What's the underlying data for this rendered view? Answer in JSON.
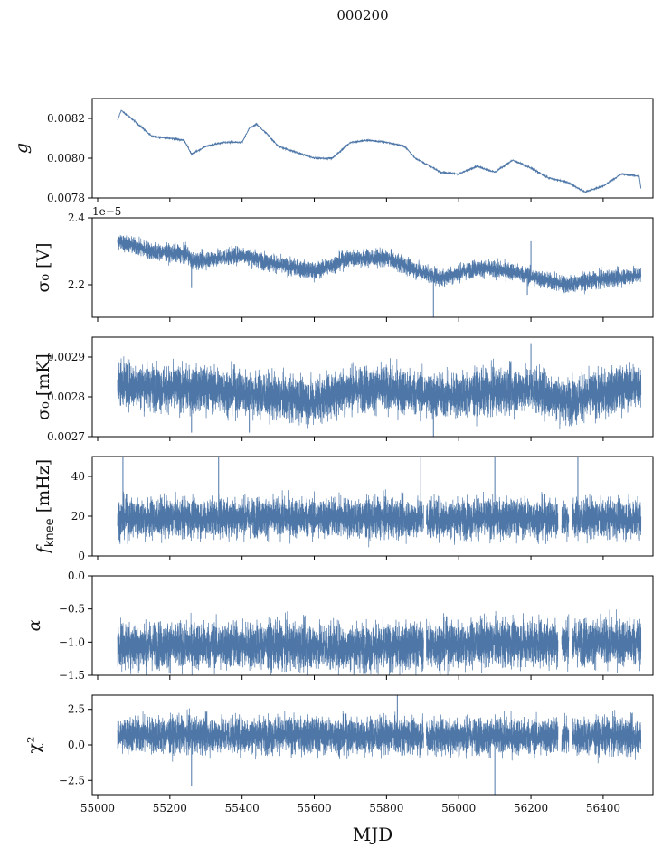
{
  "chart_data": {
    "type": "line",
    "title": "000200",
    "xlabel": "MJD",
    "xlim": [
      54985,
      56538
    ],
    "xticks": [
      55000,
      55200,
      55400,
      55600,
      55800,
      56000,
      56200,
      56400
    ],
    "xtick_labels": [
      "55000",
      "55200",
      "55400",
      "55600",
      "55800",
      "56000",
      "56200",
      "56400"
    ],
    "x_data_range": [
      55055,
      56505
    ],
    "color": "#4e77a8",
    "panels": [
      {
        "id": "g",
        "ylabel": "g",
        "ylabel_sub": "",
        "ylim": [
          0.0078,
          0.0083
        ],
        "yticks": [
          0.0078,
          0.008,
          0.0082
        ],
        "ytick_labels": [
          "0.0078",
          "0.0080",
          "0.0082"
        ],
        "noise": 6e-06,
        "style": "line",
        "trend": [
          [
            55055,
            0.00819
          ],
          [
            55065,
            0.00824
          ],
          [
            55100,
            0.00819
          ],
          [
            55150,
            0.00811
          ],
          [
            55200,
            0.0081
          ],
          [
            55240,
            0.00809
          ],
          [
            55260,
            0.00802
          ],
          [
            55300,
            0.00806
          ],
          [
            55350,
            0.00808
          ],
          [
            55400,
            0.00808
          ],
          [
            55420,
            0.00815
          ],
          [
            55440,
            0.00817
          ],
          [
            55470,
            0.00812
          ],
          [
            55500,
            0.00806
          ],
          [
            55550,
            0.00803
          ],
          [
            55600,
            0.008
          ],
          [
            55650,
            0.008
          ],
          [
            55700,
            0.00808
          ],
          [
            55750,
            0.00809
          ],
          [
            55800,
            0.00808
          ],
          [
            55850,
            0.00806
          ],
          [
            55880,
            0.008
          ],
          [
            55900,
            0.00798
          ],
          [
            55950,
            0.00793
          ],
          [
            56000,
            0.00792
          ],
          [
            56050,
            0.00796
          ],
          [
            56100,
            0.00793
          ],
          [
            56150,
            0.00799
          ],
          [
            56200,
            0.00795
          ],
          [
            56250,
            0.0079
          ],
          [
            56300,
            0.00788
          ],
          [
            56350,
            0.00783
          ],
          [
            56400,
            0.00786
          ],
          [
            56450,
            0.00792
          ],
          [
            56500,
            0.00791
          ],
          [
            56505,
            0.00784
          ]
        ],
        "spikes": [],
        "gaps": []
      },
      {
        "id": "sigma0-v",
        "ylabel": "σ₀ [V]",
        "offset_text": "1e−5",
        "ylim": [
          2.1027,
          2.4
        ],
        "yticks": [
          2.2,
          2.4
        ],
        "ytick_labels": [
          "2.2",
          "2.4"
        ],
        "noise": 0.018,
        "style": "band",
        "trend": [
          [
            55055,
            2.33
          ],
          [
            55150,
            2.3
          ],
          [
            55250,
            2.29
          ],
          [
            55260,
            2.27
          ],
          [
            55400,
            2.29
          ],
          [
            55430,
            2.28
          ],
          [
            55500,
            2.26
          ],
          [
            55600,
            2.24
          ],
          [
            55650,
            2.26
          ],
          [
            55700,
            2.28
          ],
          [
            55800,
            2.28
          ],
          [
            55870,
            2.25
          ],
          [
            55950,
            2.22
          ],
          [
            56050,
            2.25
          ],
          [
            56150,
            2.24
          ],
          [
            56250,
            2.21
          ],
          [
            56300,
            2.2
          ],
          [
            56350,
            2.21
          ],
          [
            56500,
            2.23
          ]
        ],
        "spikes": [
          [
            55260,
            2.19
          ],
          [
            55930,
            2.1
          ],
          [
            56200,
            2.33
          ],
          [
            56190,
            2.17
          ]
        ],
        "gaps": []
      },
      {
        "id": "sigma0-mk",
        "ylabel": "σ₀ [mK]",
        "ylim": [
          0.0027,
          0.00295
        ],
        "yticks": [
          0.0027,
          0.0028,
          0.0029
        ],
        "ytick_labels": [
          "0.0027",
          "0.0028",
          "0.0029"
        ],
        "noise": 4e-05,
        "style": "band",
        "trend": [
          [
            55055,
            0.002835
          ],
          [
            55200,
            0.00282
          ],
          [
            55300,
            0.00282
          ],
          [
            55420,
            0.00281
          ],
          [
            55500,
            0.0028
          ],
          [
            55600,
            0.00279
          ],
          [
            55700,
            0.00282
          ],
          [
            55800,
            0.00282
          ],
          [
            55880,
            0.00281
          ],
          [
            55950,
            0.0028
          ],
          [
            56050,
            0.00281
          ],
          [
            56200,
            0.00282
          ],
          [
            56300,
            0.00279
          ],
          [
            56400,
            0.00281
          ],
          [
            56505,
            0.00283
          ]
        ],
        "spikes": [
          [
            55260,
            0.00271
          ],
          [
            55420,
            0.00271
          ],
          [
            55930,
            0.0027
          ],
          [
            56200,
            0.002935
          ]
        ],
        "gaps": []
      },
      {
        "id": "fknee",
        "ylabel": "f_knee [mHz]",
        "ylim": [
          0,
          50
        ],
        "yticks": [
          0,
          20,
          40
        ],
        "ytick_labels": [
          "0",
          "20",
          "40"
        ],
        "noise": 7,
        "style": "band",
        "trend": [
          [
            55055,
            19
          ],
          [
            55400,
            19.5
          ],
          [
            55800,
            19
          ],
          [
            56100,
            19
          ],
          [
            56505,
            19
          ]
        ],
        "spikes": [
          [
            55070,
            50
          ],
          [
            55335,
            50
          ],
          [
            55895,
            50
          ],
          [
            56100,
            50
          ],
          [
            56330,
            50
          ]
        ],
        "gaps": [
          [
            55903,
            55910
          ],
          [
            56275,
            56285
          ],
          [
            56305,
            56315
          ]
        ]
      },
      {
        "id": "alpha",
        "ylabel": "α",
        "ylim": [
          -1.5,
          0
        ],
        "yticks": [
          -1.5,
          -1.0,
          -0.5,
          0.0
        ],
        "ytick_labels": [
          "−1.5",
          "−1.0",
          "−0.5",
          "0.0"
        ],
        "noise": 0.25,
        "style": "band",
        "trend": [
          [
            55055,
            -1.05
          ],
          [
            55500,
            -1.05
          ],
          [
            55800,
            -1.08
          ],
          [
            56100,
            -1.0
          ],
          [
            56505,
            -1.0
          ]
        ],
        "spikes": [],
        "gaps": [
          [
            55903,
            55910
          ],
          [
            56275,
            56285
          ],
          [
            56305,
            56315
          ]
        ]
      },
      {
        "id": "chi2",
        "ylabel": "χ²",
        "ylim": [
          -3.5,
          3.5
        ],
        "yticks": [
          -2.5,
          0.0,
          2.5
        ],
        "ytick_labels": [
          "−2.5",
          "0.0",
          "2.5"
        ],
        "noise": 0.9,
        "style": "band",
        "trend": [
          [
            55055,
            0.7
          ],
          [
            55500,
            0.7
          ],
          [
            56100,
            0.6
          ],
          [
            56505,
            0.6
          ]
        ],
        "spikes": [
          [
            55260,
            -2.9
          ],
          [
            55830,
            3.5
          ],
          [
            56100,
            -3.5
          ]
        ],
        "gaps": [
          [
            55903,
            55910
          ],
          [
            56275,
            56285
          ],
          [
            56305,
            56315
          ]
        ]
      }
    ]
  }
}
